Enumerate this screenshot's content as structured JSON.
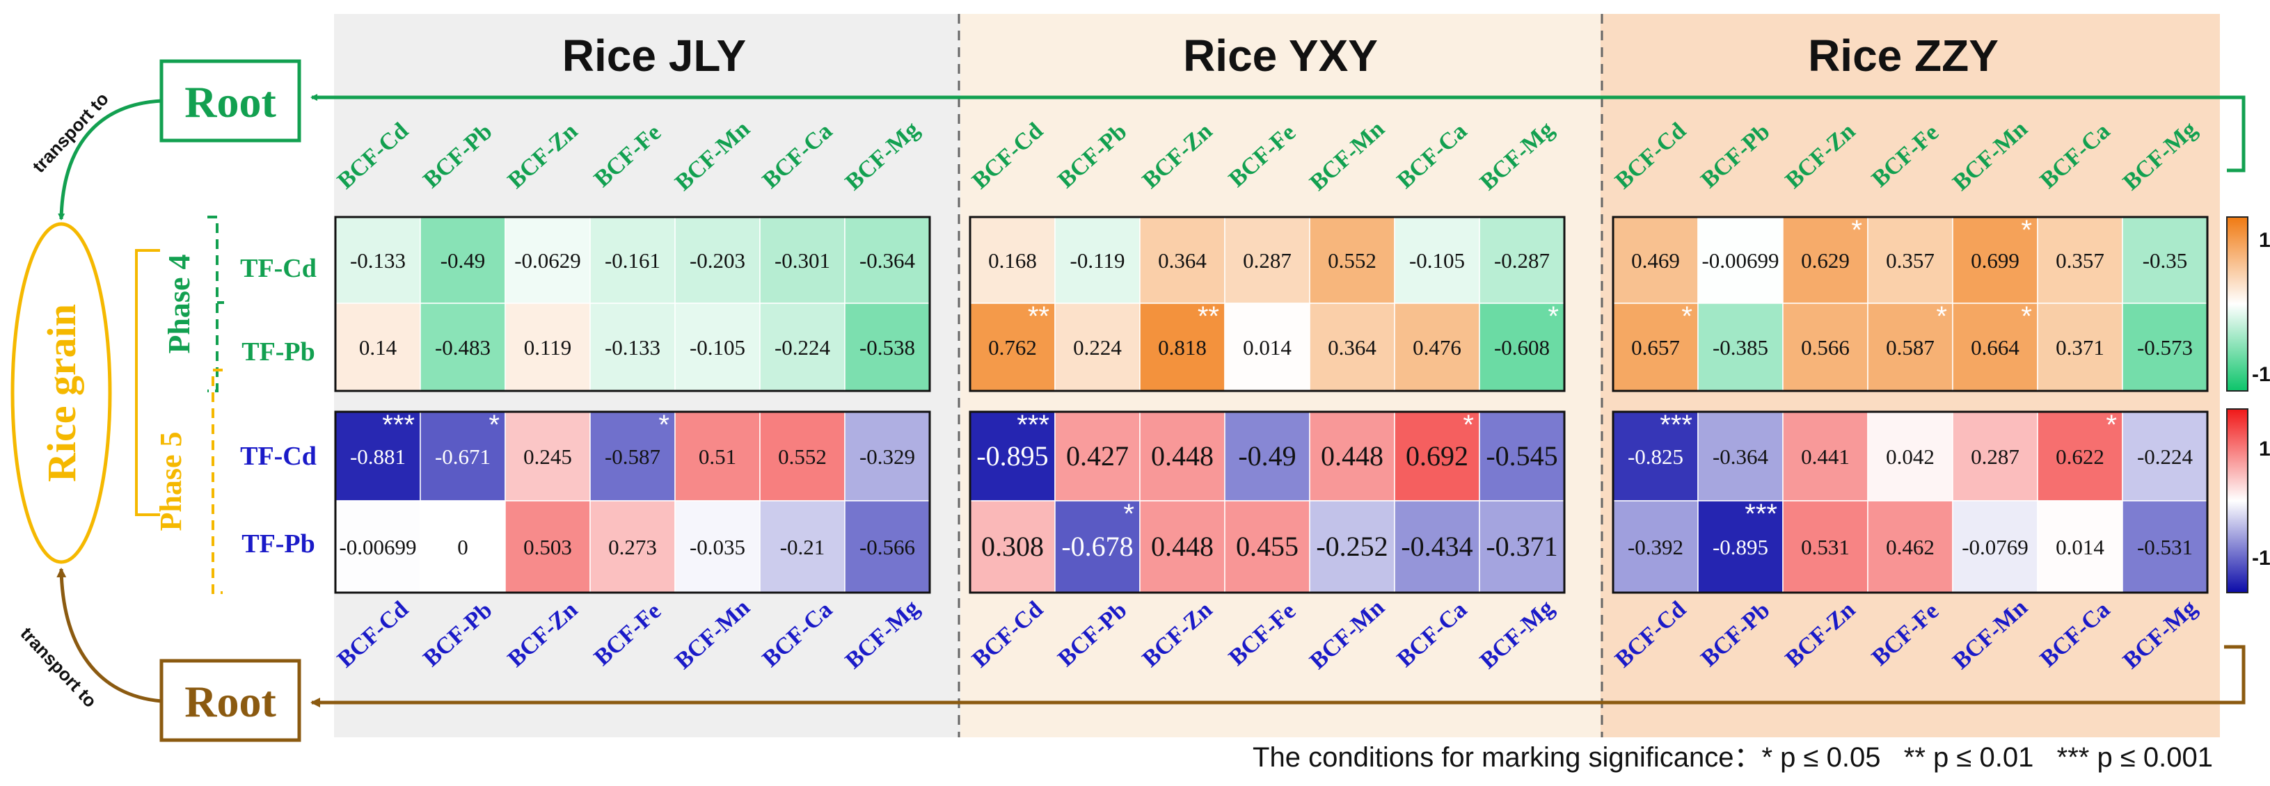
{
  "chart_data": {
    "type": "heatmap",
    "panels": [
      {
        "title": "Rice JLY",
        "phase4": {
          "values": [
            [
              -0.133,
              -0.49,
              -0.0629,
              -0.161,
              -0.203,
              -0.301,
              -0.364
            ],
            [
              0.14,
              -0.483,
              0.119,
              -0.133,
              -0.105,
              -0.224,
              -0.538
            ]
          ],
          "labels": [
            [
              "-0.133",
              "-0.49",
              "-0.0629",
              "-0.161",
              "-0.203",
              "-0.301",
              "-0.364"
            ],
            [
              "0.14",
              "-0.483",
              "0.119",
              "-0.133",
              "-0.105",
              "-0.224",
              "-0.538"
            ]
          ],
          "sig": [
            [
              "",
              "",
              "",
              "",
              "",
              "",
              ""
            ],
            [
              "",
              "",
              "",
              "",
              "",
              "",
              ""
            ]
          ]
        },
        "phase5": {
          "values": [
            [
              -0.881,
              -0.671,
              0.245,
              -0.587,
              0.51,
              0.552,
              -0.329
            ],
            [
              -0.00699,
              0,
              0.503,
              0.273,
              -0.035,
              -0.21,
              -0.566
            ]
          ],
          "labels": [
            [
              "-0.881",
              "-0.671",
              "0.245",
              "-0.587",
              "0.51",
              "0.552",
              "-0.329"
            ],
            [
              "-0.00699",
              "0",
              "0.503",
              "0.273",
              "-0.035",
              "-0.21",
              "-0.566"
            ]
          ],
          "sig": [
            [
              "***",
              "*",
              "",
              "*",
              "",
              "",
              ""
            ],
            [
              "",
              "",
              "",
              "",
              "",
              "",
              ""
            ]
          ]
        }
      },
      {
        "title": "Rice YXY",
        "phase4": {
          "values": [
            [
              0.168,
              -0.119,
              0.364,
              0.287,
              0.552,
              -0.105,
              -0.287
            ],
            [
              0.762,
              0.224,
              0.818,
              0.014,
              0.364,
              0.476,
              -0.608
            ]
          ],
          "labels": [
            [
              "0.168",
              "-0.119",
              "0.364",
              "0.287",
              "0.552",
              "-0.105",
              "-0.287"
            ],
            [
              "0.762",
              "0.224",
              "0.818",
              "0.014",
              "0.364",
              "0.476",
              "-0.608"
            ]
          ],
          "sig": [
            [
              "",
              "",
              "",
              "",
              "",
              "",
              ""
            ],
            [
              "**",
              "",
              "**",
              "",
              "",
              "",
              "*"
            ]
          ]
        },
        "phase5": {
          "values": [
            [
              -0.895,
              0.427,
              0.448,
              -0.49,
              0.448,
              0.692,
              -0.545
            ],
            [
              0.308,
              -0.678,
              0.448,
              0.455,
              -0.252,
              -0.434,
              -0.371
            ]
          ],
          "labels": [
            [
              "-0.895",
              "0.427",
              "0.448",
              "-0.49",
              "0.448",
              "0.692",
              "-0.545"
            ],
            [
              "0.308",
              "-0.678",
              "0.448",
              "0.455",
              "-0.252",
              "-0.434",
              "-0.371"
            ]
          ],
          "sig": [
            [
              "***",
              "",
              "",
              "",
              "",
              "*",
              ""
            ],
            [
              "",
              "*",
              "",
              "",
              "",
              "",
              ""
            ]
          ]
        }
      },
      {
        "title": "Rice ZZY",
        "phase4": {
          "values": [
            [
              0.469,
              -0.00699,
              0.629,
              0.357,
              0.699,
              0.357,
              -0.35
            ],
            [
              0.657,
              -0.385,
              0.566,
              0.587,
              0.664,
              0.371,
              -0.573
            ]
          ],
          "labels": [
            [
              "0.469",
              "-0.00699",
              "0.629",
              "0.357",
              "0.699",
              "0.357",
              "-0.35"
            ],
            [
              "0.657",
              "-0.385",
              "0.566",
              "0.587",
              "0.664",
              "0.371",
              "-0.573"
            ]
          ],
          "sig": [
            [
              "",
              "",
              "*",
              "",
              "*",
              "",
              ""
            ],
            [
              "*",
              "",
              "",
              "*",
              "*",
              "",
              ""
            ]
          ]
        },
        "phase5": {
          "values": [
            [
              -0.825,
              -0.364,
              0.441,
              0.042,
              0.287,
              0.622,
              -0.224
            ],
            [
              -0.392,
              -0.895,
              0.531,
              0.462,
              -0.0769,
              0.014,
              -0.531
            ]
          ],
          "labels": [
            [
              "-0.825",
              "-0.364",
              "0.441",
              "0.042",
              "0.287",
              "0.622",
              "-0.224"
            ],
            [
              "-0.392",
              "-0.895",
              "0.531",
              "0.462",
              "-0.0769",
              "0.014",
              "-0.531"
            ]
          ],
          "sig": [
            [
              "***",
              "",
              "",
              "",
              "",
              "*",
              ""
            ],
            [
              "",
              "***",
              "",
              "",
              "",
              "",
              ""
            ]
          ]
        }
      }
    ],
    "columns": [
      "BCF-Cd",
      "BCF-Pb",
      "BCF-Zn",
      "BCF-Fe",
      "BCF-Mn",
      "BCF-Ca",
      "BCF-Mg"
    ],
    "rows": [
      "TF-Cd",
      "TF-Pb"
    ],
    "phases": [
      "Phase 4",
      "Phase 5"
    ],
    "range": [
      -1,
      1
    ],
    "colorbar_ticks": [
      "1",
      "-1"
    ],
    "colors": {
      "p4_pos": "#f07a12",
      "p4_neg": "#0cc46a",
      "p5_pos": "#f01818",
      "p5_neg": "#0b0ba8",
      "green_label": "#12a050",
      "blue_label": "#1a1ac8",
      "brown": "#8b5a10",
      "gold": "#f5b800"
    }
  },
  "labels": {
    "root_top": "Root",
    "root_bottom": "Root",
    "rice_grain": "Rice grain",
    "transport_top": "transport to",
    "transport_bottom": "transport to",
    "footnote": "The conditions for marking significance：* p ≤ 0.05   ** p ≤ 0.01   *** p ≤ 0.001"
  }
}
